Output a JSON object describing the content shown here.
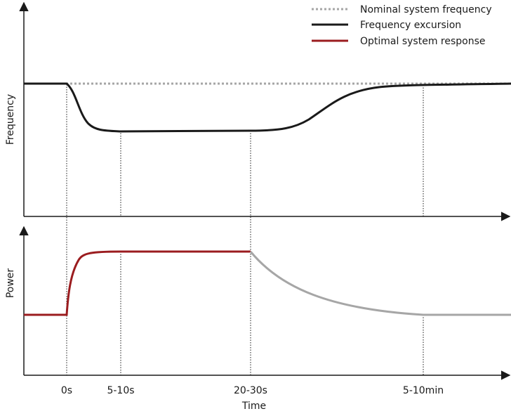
{
  "legend": {
    "nominal": "Nominal system frequency",
    "excursion": "Frequency excursion",
    "response": "Optimal system response"
  },
  "axes": {
    "top_ylabel": "Frequency",
    "bottom_ylabel": "Power",
    "xlabel": "Time"
  },
  "ticks": [
    "0s",
    "5-10s",
    "20-30s",
    "5-10min"
  ],
  "colors": {
    "axis": "#1a1a1a",
    "nominal": "#a6a6a6",
    "excursion": "#1a1a1a",
    "response": "#9b1c1f",
    "decay": "#a6a6a6",
    "guide": "#1a1a1a"
  }
}
